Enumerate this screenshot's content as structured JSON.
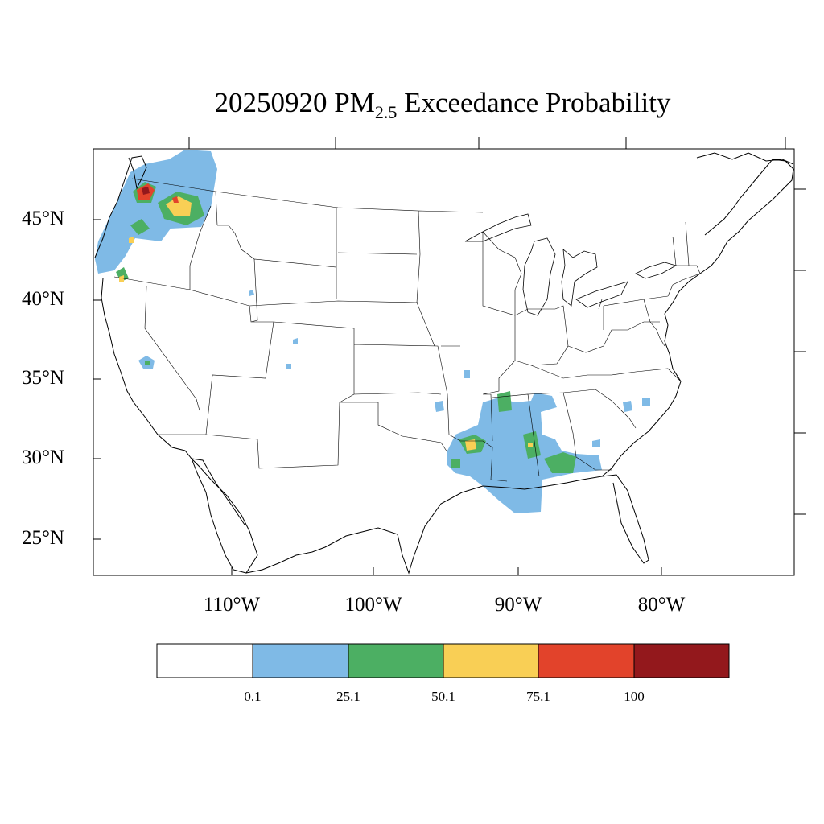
{
  "map": {
    "title_prefix": "20250920 PM",
    "title_subscript": "2.5",
    "title_suffix": " Exceedance Probability",
    "lat_labels": [
      "45°N",
      "40°N",
      "35°N",
      "30°N",
      "25°N"
    ],
    "lon_labels": [
      "110°W",
      "100°W",
      "90°W",
      "80°W"
    ]
  },
  "legend": {
    "colors": [
      "#ffffff",
      "#7fbae6",
      "#4caf63",
      "#f9cf55",
      "#e2432b",
      "#93181c"
    ],
    "labels": [
      "0.1",
      "25.1",
      "50.1",
      "75.1",
      "100"
    ]
  }
}
